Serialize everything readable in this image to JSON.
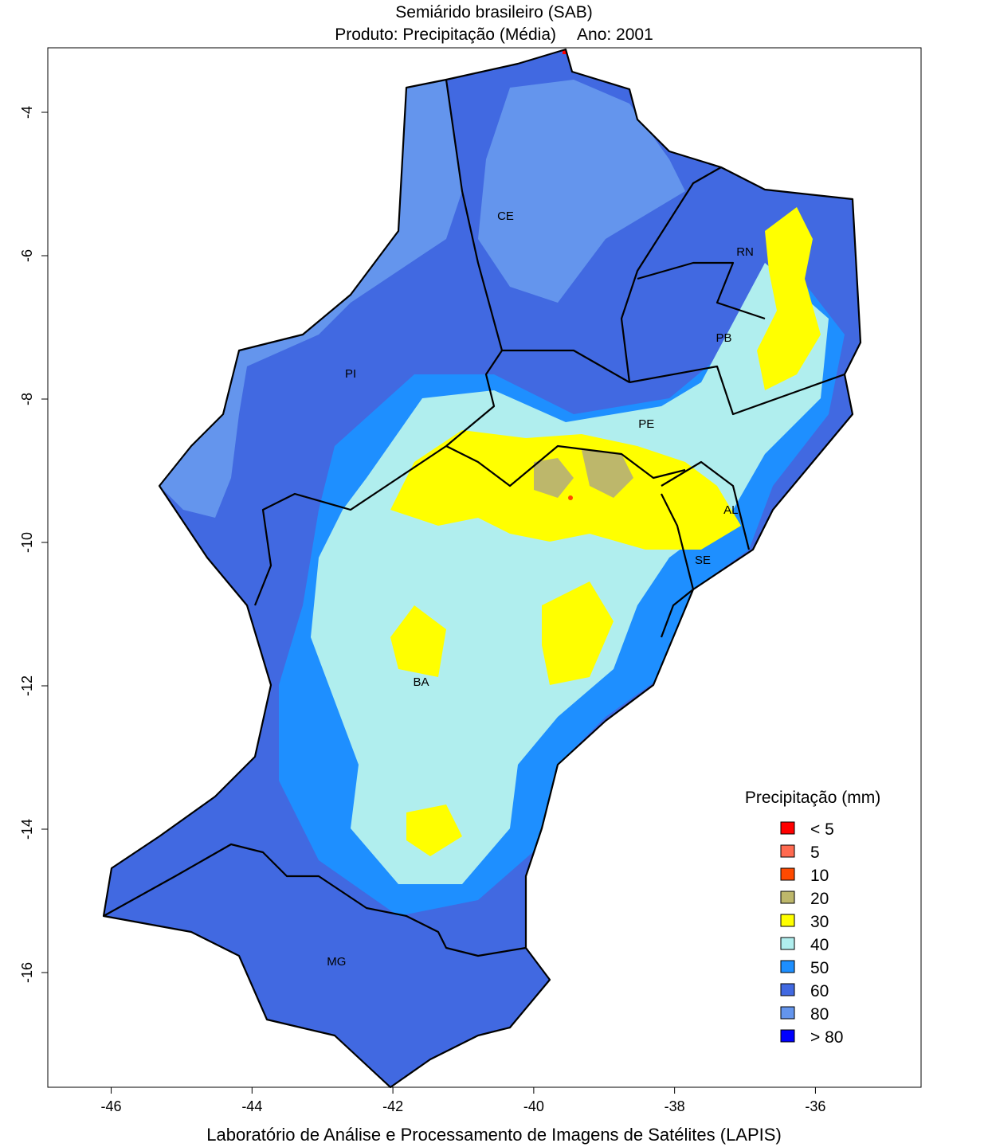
{
  "title": {
    "line1": "Semiárido brasileiro (SAB)",
    "line2_product": "Produto: Precipitação (Média)",
    "line2_year": "Ano:  2001"
  },
  "footer": "Laboratório de Análise e Processamento de Imagens de Satélites (LAPIS)",
  "axes": {
    "x_ticks": [
      "-46",
      "-44",
      "-42",
      "-40",
      "-38",
      "-36"
    ],
    "y_ticks": [
      "-4",
      "-6",
      "-8",
      "-10",
      "-12",
      "-14",
      "-16"
    ],
    "x_range": [
      -46.9,
      -34.5
    ],
    "y_range": [
      -17.6,
      -3.1
    ]
  },
  "states": [
    {
      "code": "CE",
      "lon": -40.4,
      "lat": -5.5
    },
    {
      "code": "RN",
      "lon": -37.0,
      "lat": -6.0
    },
    {
      "code": "PB",
      "lon": -37.3,
      "lat": -7.2
    },
    {
      "code": "PI",
      "lon": -42.6,
      "lat": -7.7
    },
    {
      "code": "PE",
      "lon": -38.4,
      "lat": -8.4
    },
    {
      "code": "AL",
      "lon": -37.2,
      "lat": -9.6
    },
    {
      "code": "SE",
      "lon": -37.6,
      "lat": -10.3
    },
    {
      "code": "BA",
      "lon": -41.6,
      "lat": -12.0
    },
    {
      "code": "MG",
      "lon": -42.8,
      "lat": -15.9
    }
  ],
  "legend": {
    "title": "Precipitação (mm)",
    "position": "bottom-right",
    "items": [
      {
        "label": "< 5",
        "color": "#ff0000"
      },
      {
        "label": "5",
        "color": "#ff6a50"
      },
      {
        "label": "10",
        "color": "#ff4a00"
      },
      {
        "label": "20",
        "color": "#bdb76b"
      },
      {
        "label": "30",
        "color": "#ffff00"
      },
      {
        "label": "40",
        "color": "#b0eeee"
      },
      {
        "label": "50",
        "color": "#1e8fff"
      },
      {
        "label": "60",
        "color": "#4169e1"
      },
      {
        "label": "80",
        "color": "#6495ed"
      },
      {
        "label": "> 80",
        "color": "#0000ff"
      }
    ]
  }
}
